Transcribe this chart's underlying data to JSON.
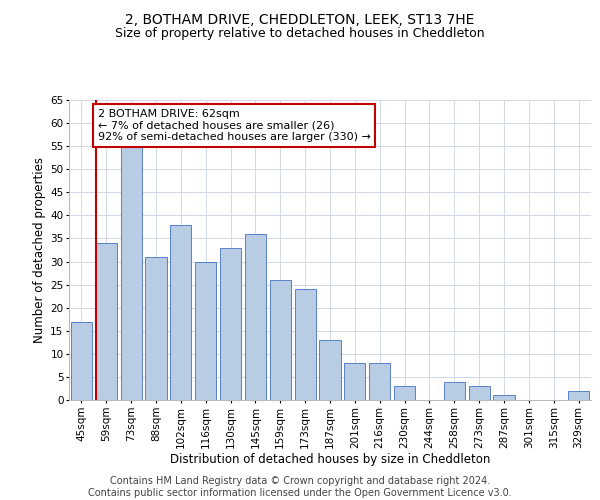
{
  "title": "2, BOTHAM DRIVE, CHEDDLETON, LEEK, ST13 7HE",
  "subtitle": "Size of property relative to detached houses in Cheddleton",
  "xlabel": "Distribution of detached houses by size in Cheddleton",
  "ylabel": "Number of detached properties",
  "categories": [
    "45sqm",
    "59sqm",
    "73sqm",
    "88sqm",
    "102sqm",
    "116sqm",
    "130sqm",
    "145sqm",
    "159sqm",
    "173sqm",
    "187sqm",
    "201sqm",
    "216sqm",
    "230sqm",
    "244sqm",
    "258sqm",
    "273sqm",
    "287sqm",
    "301sqm",
    "315sqm",
    "329sqm"
  ],
  "values": [
    17,
    34,
    55,
    31,
    38,
    30,
    33,
    36,
    26,
    24,
    13,
    8,
    8,
    3,
    0,
    4,
    3,
    1,
    0,
    0,
    2
  ],
  "bar_color": "#b8cce4",
  "bar_edge_color": "#4472c4",
  "highlight_bar_index": 1,
  "highlight_line_color": "#c00000",
  "ylim": [
    0,
    65
  ],
  "yticks": [
    0,
    5,
    10,
    15,
    20,
    25,
    30,
    35,
    40,
    45,
    50,
    55,
    60,
    65
  ],
  "annotation_text": "2 BOTHAM DRIVE: 62sqm\n← 7% of detached houses are smaller (26)\n92% of semi-detached houses are larger (330) →",
  "annotation_box_color": "#ffffff",
  "annotation_box_edge": "#c00000",
  "footer_line1": "Contains HM Land Registry data © Crown copyright and database right 2024.",
  "footer_line2": "Contains public sector information licensed under the Open Government Licence v3.0.",
  "background_color": "#ffffff",
  "grid_color": "#d0d8e8",
  "title_fontsize": 10,
  "subtitle_fontsize": 9,
  "axis_fontsize": 8.5,
  "tick_fontsize": 7.5,
  "footer_fontsize": 7,
  "annot_fontsize": 8
}
